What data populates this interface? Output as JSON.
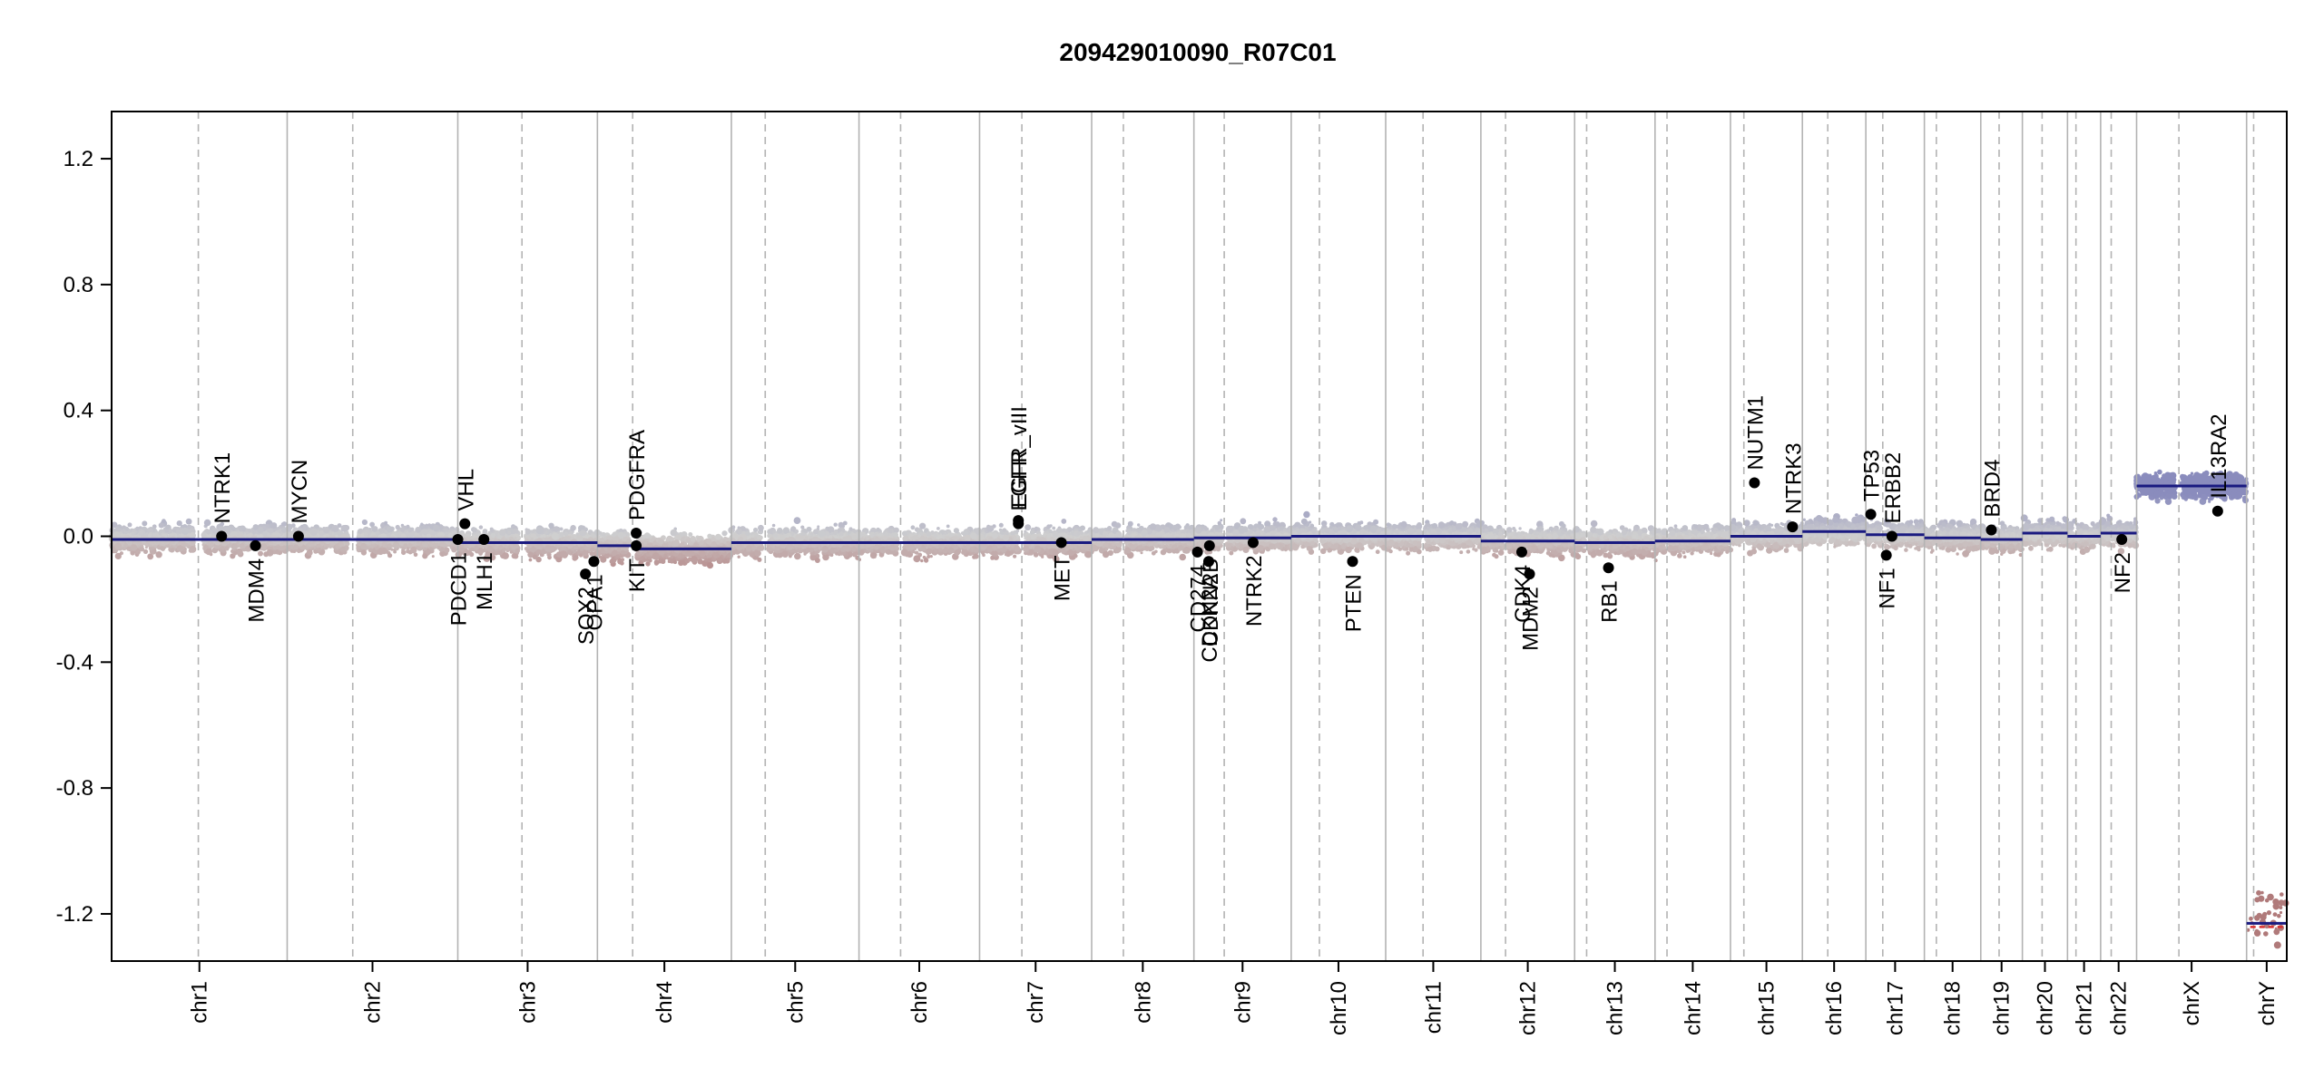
{
  "chart_data": {
    "type": "scatter",
    "title": "209429010090_R07C01",
    "xlabel": "",
    "ylabel": "",
    "ylim": [
      -1.35,
      1.35
    ],
    "y_ticks": [
      -1.2,
      -0.8,
      -0.4,
      0.0,
      0.4,
      0.8,
      1.2
    ],
    "y_tick_labels": [
      "-1.2",
      "-0.8",
      "-0.4",
      "0.0",
      "0.4",
      "0.8",
      "1.2"
    ],
    "grid": false,
    "legend": "none",
    "chromosomes": [
      {
        "name": "chr1",
        "length": 249,
        "centromere": 123
      },
      {
        "name": "chr2",
        "length": 242,
        "centromere": 93
      },
      {
        "name": "chr3",
        "length": 198,
        "centromere": 91
      },
      {
        "name": "chr4",
        "length": 190,
        "centromere": 50
      },
      {
        "name": "chr5",
        "length": 181,
        "centromere": 48
      },
      {
        "name": "chr6",
        "length": 171,
        "centromere": 59
      },
      {
        "name": "chr7",
        "length": 159,
        "centromere": 60
      },
      {
        "name": "chr8",
        "length": 145,
        "centromere": 45
      },
      {
        "name": "chr9",
        "length": 138,
        "centromere": 43
      },
      {
        "name": "chr10",
        "length": 134,
        "centromere": 40
      },
      {
        "name": "chr11",
        "length": 135,
        "centromere": 53
      },
      {
        "name": "chr12",
        "length": 133,
        "centromere": 35
      },
      {
        "name": "chr13",
        "length": 114,
        "centromere": 17
      },
      {
        "name": "chr14",
        "length": 107,
        "centromere": 17
      },
      {
        "name": "chr15",
        "length": 102,
        "centromere": 19
      },
      {
        "name": "chr16",
        "length": 90,
        "centromere": 36
      },
      {
        "name": "chr17",
        "length": 83,
        "centromere": 24
      },
      {
        "name": "chr18",
        "length": 80,
        "centromere": 17
      },
      {
        "name": "chr19",
        "length": 59,
        "centromere": 26
      },
      {
        "name": "chr20",
        "length": 64,
        "centromere": 28
      },
      {
        "name": "chr21",
        "length": 47,
        "centromere": 12
      },
      {
        "name": "chr22",
        "length": 51,
        "centromere": 15
      },
      {
        "name": "chrX",
        "length": 156,
        "centromere": 60
      },
      {
        "name": "chrY",
        "length": 57,
        "centromere": 10
      }
    ],
    "segments": [
      {
        "chr": "chr1",
        "start": 0,
        "end": 249,
        "value": -0.01
      },
      {
        "chr": "chr2",
        "start": 0,
        "end": 242,
        "value": -0.01
      },
      {
        "chr": "chr3",
        "start": 0,
        "end": 198,
        "value": -0.02
      },
      {
        "chr": "chr4",
        "start": 0,
        "end": 50,
        "value": -0.03
      },
      {
        "chr": "chr4",
        "start": 50,
        "end": 190,
        "value": -0.04
      },
      {
        "chr": "chr5",
        "start": 0,
        "end": 181,
        "value": -0.02
      },
      {
        "chr": "chr6",
        "start": 0,
        "end": 171,
        "value": -0.02
      },
      {
        "chr": "chr7",
        "start": 0,
        "end": 159,
        "value": -0.02
      },
      {
        "chr": "chr8",
        "start": 0,
        "end": 145,
        "value": -0.01
      },
      {
        "chr": "chr9",
        "start": 0,
        "end": 138,
        "value": -0.005
      },
      {
        "chr": "chr10",
        "start": 0,
        "end": 134,
        "value": 0.0
      },
      {
        "chr": "chr11",
        "start": 0,
        "end": 135,
        "value": 0.0
      },
      {
        "chr": "chr12",
        "start": 0,
        "end": 133,
        "value": -0.015
      },
      {
        "chr": "chr13",
        "start": 0,
        "end": 114,
        "value": -0.02
      },
      {
        "chr": "chr14",
        "start": 0,
        "end": 107,
        "value": -0.015
      },
      {
        "chr": "chr15",
        "start": 0,
        "end": 102,
        "value": 0.0
      },
      {
        "chr": "chr16",
        "start": 0,
        "end": 90,
        "value": 0.015
      },
      {
        "chr": "chr17",
        "start": 0,
        "end": 83,
        "value": 0.005
      },
      {
        "chr": "chr18",
        "start": 0,
        "end": 80,
        "value": -0.005
      },
      {
        "chr": "chr19",
        "start": 0,
        "end": 59,
        "value": -0.01
      },
      {
        "chr": "chr20",
        "start": 0,
        "end": 64,
        "value": 0.01
      },
      {
        "chr": "chr21",
        "start": 0,
        "end": 47,
        "value": 0.0
      },
      {
        "chr": "chr22",
        "start": 0,
        "end": 51,
        "value": 0.01
      },
      {
        "chr": "chrX",
        "start": 0,
        "end": 156,
        "value": 0.16
      },
      {
        "chr": "chrY",
        "start": 0,
        "end": 57,
        "value": -1.23
      }
    ],
    "genes": [
      {
        "name": "NTRK1",
        "chr": "chr1",
        "pos": 156,
        "value": 0.0
      },
      {
        "name": "MDM4",
        "chr": "chr1",
        "pos": 204,
        "value": -0.03
      },
      {
        "name": "MYCN",
        "chr": "chr2",
        "pos": 16,
        "value": 0.0
      },
      {
        "name": "PDCD1",
        "chr": "chr2",
        "pos": 242,
        "value": -0.01
      },
      {
        "name": "VHL",
        "chr": "chr3",
        "pos": 10,
        "value": 0.04
      },
      {
        "name": "MLH1",
        "chr": "chr3",
        "pos": 37,
        "value": -0.01
      },
      {
        "name": "SOX2",
        "chr": "chr3",
        "pos": 181,
        "value": -0.12
      },
      {
        "name": "OPA1",
        "chr": "chr3",
        "pos": 193,
        "value": -0.08
      },
      {
        "name": "KIT",
        "chr": "chr4",
        "pos": 55,
        "value": -0.03
      },
      {
        "name": "PDGFRA",
        "chr": "chr4",
        "pos": 55,
        "value": 0.01
      },
      {
        "name": "EGFR",
        "chr": "chr7",
        "pos": 55,
        "value": 0.04
      },
      {
        "name": "EGFR_vIII",
        "chr": "chr7",
        "pos": 55,
        "value": 0.05
      },
      {
        "name": "MET",
        "chr": "chr7",
        "pos": 116,
        "value": -0.02
      },
      {
        "name": "CD274",
        "chr": "chr9",
        "pos": 5,
        "value": -0.05
      },
      {
        "name": "CDKN2A",
        "chr": "chr9",
        "pos": 21,
        "value": -0.08
      },
      {
        "name": "CDKN2B",
        "chr": "chr9",
        "pos": 22,
        "value": -0.03
      },
      {
        "name": "NTRK2",
        "chr": "chr9",
        "pos": 84,
        "value": -0.02
      },
      {
        "name": "PTEN",
        "chr": "chr10",
        "pos": 87,
        "value": -0.08
      },
      {
        "name": "CDK4",
        "chr": "chr12",
        "pos": 58,
        "value": -0.05
      },
      {
        "name": "MDM2",
        "chr": "chr12",
        "pos": 69,
        "value": -0.12
      },
      {
        "name": "RB1",
        "chr": "chr13",
        "pos": 48,
        "value": -0.1
      },
      {
        "name": "NUTM1",
        "chr": "chr15",
        "pos": 34,
        "value": 0.17
      },
      {
        "name": "NTRK3",
        "chr": "chr15",
        "pos": 88,
        "value": 0.03
      },
      {
        "name": "TP53",
        "chr": "chr17",
        "pos": 7,
        "value": 0.07
      },
      {
        "name": "NF1",
        "chr": "chr17",
        "pos": 29,
        "value": -0.06
      },
      {
        "name": "ERBB2",
        "chr": "chr17",
        "pos": 37,
        "value": 0.0
      },
      {
        "name": "BRD4",
        "chr": "chr19",
        "pos": 15,
        "value": 0.02
      },
      {
        "name": "NF2",
        "chr": "chr22",
        "pos": 30,
        "value": -0.01
      },
      {
        "name": "IL13RA2",
        "chr": "chrX",
        "pos": 115,
        "value": 0.08
      }
    ],
    "colors": {
      "gain": "#8a8cbd",
      "neutral": "#cfcfcf",
      "loss": "#b07a7a",
      "segment": "#1a1a80",
      "gene_point": "#000000",
      "chr_boundary": "#b3b3b3",
      "centromere": "#b3b3b3",
      "y_segment_red": "#d83030"
    }
  }
}
